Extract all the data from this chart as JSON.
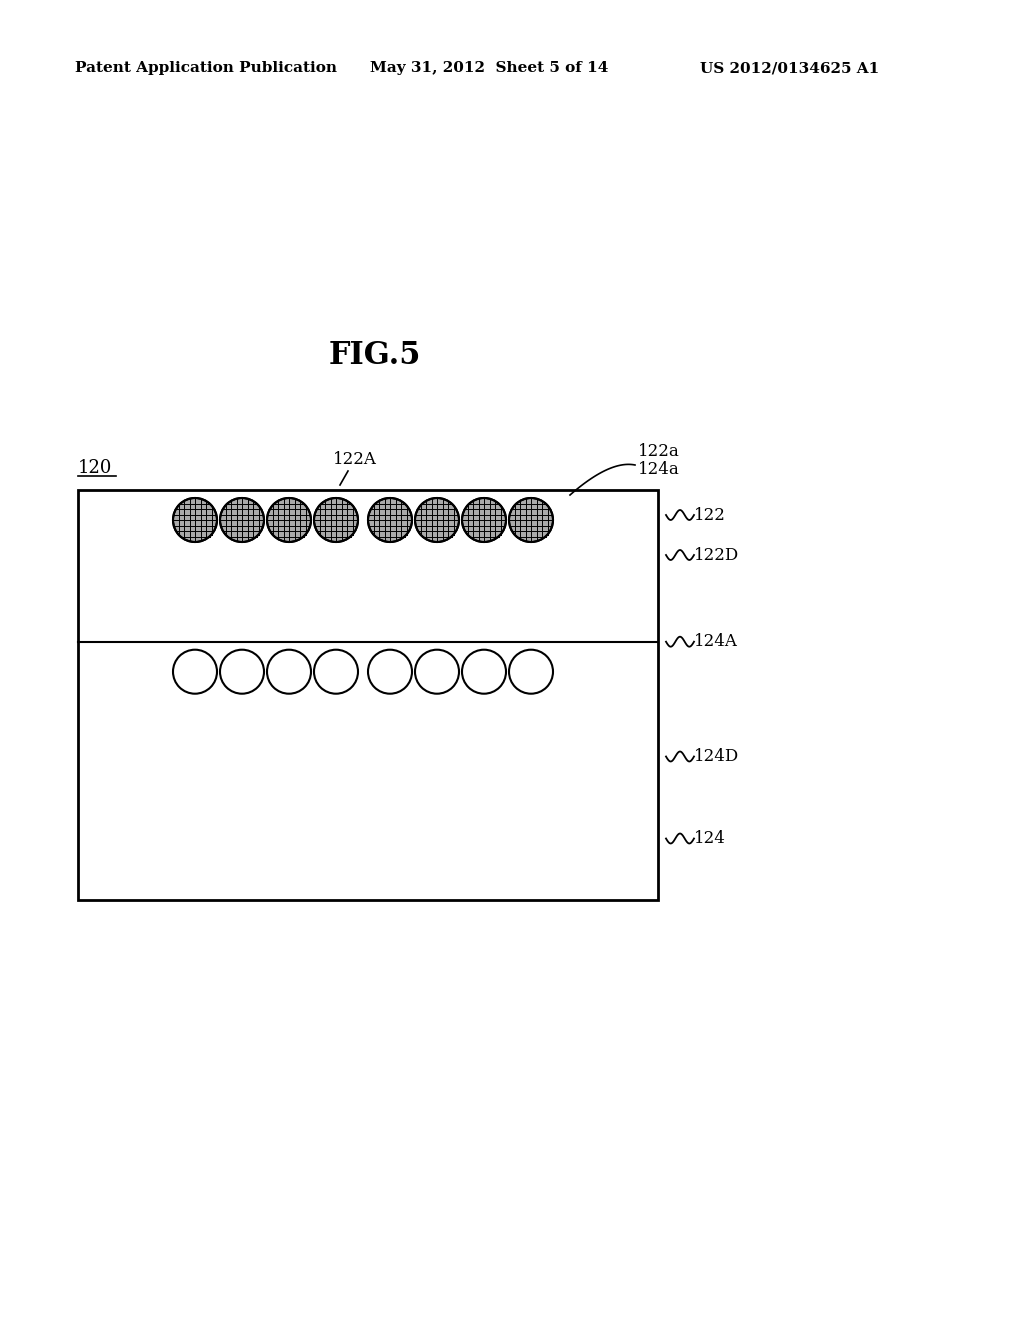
{
  "title": "FIG.5",
  "header_left": "Patent Application Publication",
  "header_center": "May 31, 2012  Sheet 5 of 14",
  "header_right": "US 2012/0134625 A1",
  "bg_color": "#ffffff",
  "text_color": "#000000",
  "label_120": "120",
  "label_122A": "122A",
  "label_122a": "122a",
  "label_124a": "124a",
  "label_122": "122",
  "label_122D": "122D",
  "label_124A": "124A",
  "label_124D": "124D",
  "label_124": "124"
}
